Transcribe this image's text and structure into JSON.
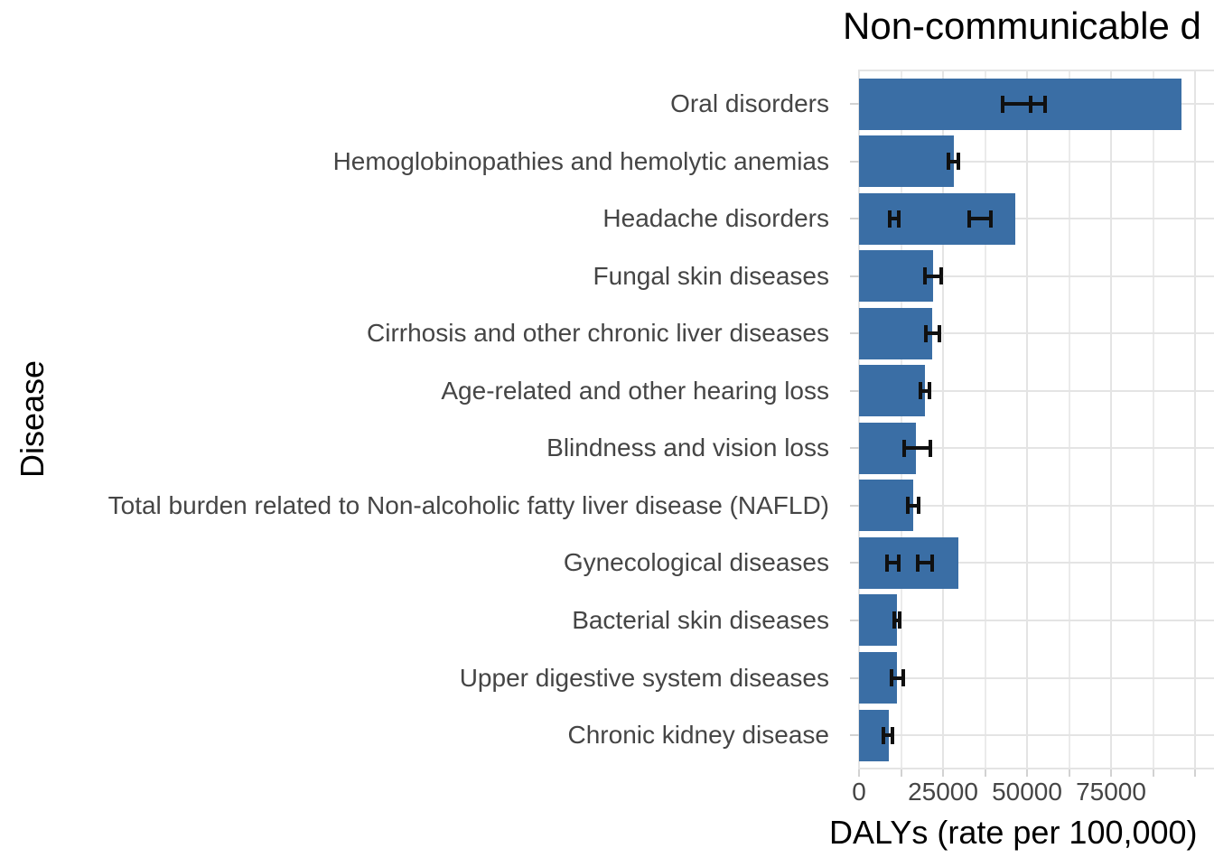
{
  "title": "Non-communicable d",
  "axes": {
    "y_title": "Disease",
    "x_title": "DALYs (rate per 100,000)",
    "x_tick_labels": [
      "0",
      "25000",
      "50000",
      "75000"
    ]
  },
  "chart_data": {
    "type": "bar",
    "orientation": "horizontal",
    "title": "Non-communicable d",
    "xlabel": "DALYs (rate per 100,000)",
    "ylabel": "Disease",
    "xlim": [
      0,
      105600
    ],
    "x_major_ticks": [
      0,
      25000,
      50000,
      75000,
      100000
    ],
    "x_minor_step": 12500,
    "grid": true,
    "legend": "none",
    "bar_color": "#3a6ea5",
    "errorbar_color": "#101010",
    "gridline_color": "#e4e4e4",
    "categories": [
      "Oral disorders",
      "Hemoglobinopathies and hemolytic anemias",
      "Headache disorders",
      "Fungal skin diseases",
      "Cirrhosis and other chronic liver diseases",
      "Age-related and other hearing loss",
      "Blindness and vision loss",
      "Total burden related to Non-alcoholic fatty liver disease (NAFLD)",
      "Gynecological diseases",
      "Bacterial skin diseases",
      "Upper digestive system diseases",
      "Chronic kidney disease"
    ],
    "values": [
      96000,
      28200,
      46500,
      22000,
      21800,
      19600,
      16900,
      16100,
      29600,
      11300,
      11300,
      8900
    ],
    "error_bars": [
      [
        [
          42700,
          51100
        ],
        [
          51100,
          55400
        ]
      ],
      [
        [
          26600,
          29500
        ]
      ],
      [
        [
          9100,
          11800
        ],
        [
          32800,
          39200
        ]
      ],
      [
        [
          19600,
          24500
        ]
      ],
      [
        [
          19900,
          23900
        ]
      ],
      [
        [
          18300,
          21000
        ]
      ],
      [
        [
          13400,
          21200
        ]
      ],
      [
        [
          14500,
          17700
        ]
      ],
      [
        [
          8300,
          11800
        ],
        [
          17500,
          21800
        ]
      ],
      [
        [
          10500,
          12100
        ]
      ],
      [
        [
          9700,
          13200
        ]
      ],
      [
        [
          7300,
          9900
        ]
      ]
    ]
  }
}
